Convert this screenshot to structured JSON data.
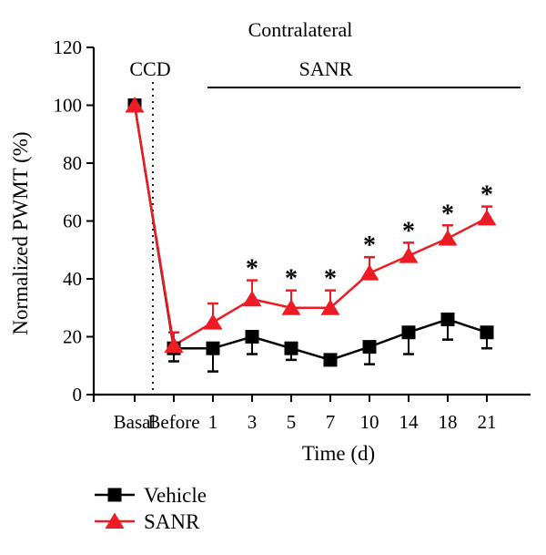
{
  "chart_data": {
    "type": "line",
    "title": "Contralateral",
    "ccd_label": "CCD",
    "period_label": "SANR",
    "significance_symbol": "*",
    "xlabel": "Time (d)",
    "ylabel": "Normalized PWMT (%)",
    "ylim": [
      0,
      120
    ],
    "y_ticks": [
      0,
      20,
      40,
      60,
      80,
      100,
      120
    ],
    "categories": [
      "Basal",
      "Before",
      "1",
      "3",
      "5",
      "7",
      "10",
      "14",
      "18",
      "21"
    ],
    "ccd_line_between": [
      "Basal",
      "Before"
    ],
    "grid": false,
    "legend_position": "bottom-left",
    "series": [
      {
        "name": "Vehicle",
        "marker": "square",
        "color": "#000000",
        "values": [
          100,
          16,
          16,
          20,
          16,
          12,
          16.5,
          21.5,
          26,
          21.5
        ],
        "error_down": [
          0,
          4.5,
          8,
          6,
          4,
          0,
          6,
          7.5,
          7,
          5.5
        ],
        "error_up": [
          0,
          0,
          0,
          0,
          0,
          0,
          0,
          0,
          0,
          0
        ],
        "significant": [
          false,
          false,
          false,
          false,
          false,
          false,
          false,
          false,
          false,
          false
        ]
      },
      {
        "name": "SANR",
        "marker": "triangle",
        "color": "#ed1c24",
        "values": [
          100,
          17,
          25,
          33,
          30,
          30,
          42,
          48,
          54,
          61
        ],
        "error_down": [
          0,
          0,
          0,
          0,
          0,
          0,
          0,
          0,
          0,
          0
        ],
        "error_up": [
          0,
          4.5,
          6.5,
          6.5,
          6,
          6,
          5.5,
          4.5,
          4.5,
          4
        ],
        "significant": [
          false,
          false,
          false,
          true,
          true,
          true,
          true,
          true,
          true,
          true
        ]
      }
    ]
  }
}
